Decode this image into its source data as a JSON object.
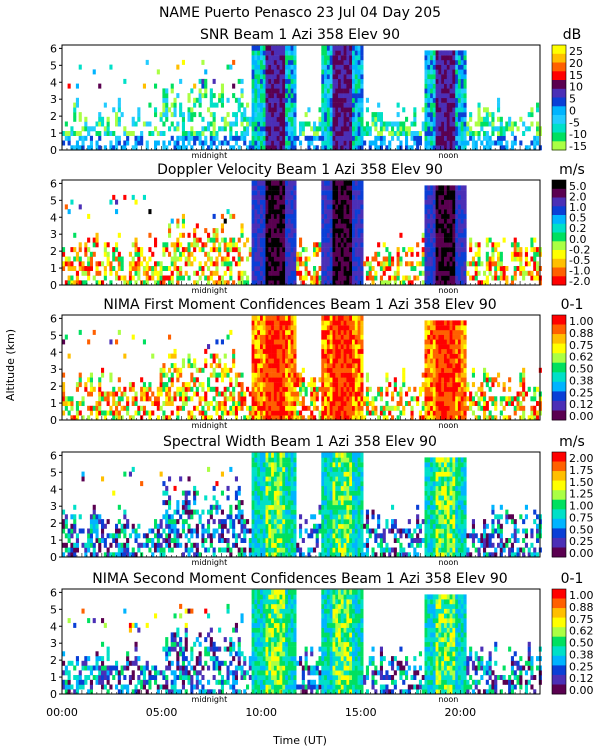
{
  "title": "NAME Puerto Penasco  23 Jul 04 Day 205",
  "ylabel": "Altitude (km)",
  "xlabel": "Time (UT)",
  "x_ticks": [
    "00:00",
    "05:00",
    "10:00",
    "15:00",
    "20:00"
  ],
  "midnight_label": "midnight",
  "noon_label": "noon",
  "chart_data": [
    {
      "type": "heatmap",
      "title": "SNR Beam 1 Azi 358 Elev 90",
      "units": "dB",
      "xlim": [
        0,
        24
      ],
      "ylim": [
        0,
        6.2
      ],
      "y_ticks": [
        0,
        1,
        2,
        3,
        4,
        5,
        6
      ],
      "colorbar": [
        "25",
        "20",
        "15",
        "10",
        "5",
        "0",
        "-5",
        "-10",
        "-15"
      ],
      "colors": [
        "#ffff00",
        "#ffbf00",
        "#ff6000",
        "#ff0000",
        "#5a0050",
        "#4b2fb6",
        "#0a3fd6",
        "#00b4ff",
        "#22ccff",
        "#00e0c8",
        "#00e060",
        "#aaff44"
      ],
      "ridges": [
        {
          "time": 10.6,
          "top": 6.1
        },
        {
          "time": 14.0,
          "top": 6.1
        },
        {
          "time": 19.2,
          "top": 5.7
        }
      ]
    },
    {
      "type": "heatmap",
      "title": "Doppler Velocity Beam 1 Azi 358 Elev 90",
      "units": "m/s",
      "xlim": [
        0,
        24
      ],
      "ylim": [
        0,
        6.2
      ],
      "y_ticks": [
        0,
        1,
        2,
        3,
        4,
        5,
        6
      ],
      "colorbar": [
        "5.0",
        "2.0",
        "1.0",
        "0.5",
        "0.2",
        "0.0",
        "-0.2",
        "-0.5",
        "-1.0",
        "-2.0"
      ],
      "colors": [
        "#000000",
        "#5a0050",
        "#4b2fb6",
        "#0a3fd6",
        "#00b4ff",
        "#00e0c8",
        "#00e060",
        "#aaff44",
        "#ffff00",
        "#ffbf00",
        "#ff6000",
        "#ff0000"
      ],
      "ridges": [
        {
          "time": 10.6,
          "top": 6.1
        },
        {
          "time": 14.0,
          "top": 6.1
        },
        {
          "time": 19.2,
          "top": 5.7
        }
      ]
    },
    {
      "type": "heatmap",
      "title": "NIMA First Moment Confidences Beam 1 Azi 358 Elev 90",
      "units": "0-1",
      "xlim": [
        0,
        24
      ],
      "ylim": [
        0,
        6.2
      ],
      "y_ticks": [
        0,
        1,
        2,
        3,
        4,
        5,
        6
      ],
      "colorbar": [
        "1.00",
        "0.88",
        "0.75",
        "0.62",
        "0.50",
        "0.38",
        "0.25",
        "0.12",
        "0.00"
      ],
      "colors": [
        "#ff0000",
        "#ff6000",
        "#ffbf00",
        "#ffff00",
        "#aaff44",
        "#00e060",
        "#00e0c8",
        "#00b4ff",
        "#0a3fd6",
        "#4b2fb6",
        "#5a0050"
      ],
      "ridges": [
        {
          "time": 10.6,
          "top": 6.1
        },
        {
          "time": 14.0,
          "top": 6.1
        },
        {
          "time": 19.2,
          "top": 5.7
        }
      ]
    },
    {
      "type": "heatmap",
      "title": "Spectral Width Beam 1 Azi 358 Elev 90",
      "units": "m/s",
      "xlim": [
        0,
        24
      ],
      "ylim": [
        0,
        6.2
      ],
      "y_ticks": [
        0,
        1,
        2,
        3,
        4,
        5,
        6
      ],
      "colorbar": [
        "2.00",
        "1.75",
        "1.50",
        "1.25",
        "1.00",
        "0.75",
        "0.50",
        "0.25",
        "0.00"
      ],
      "colors": [
        "#ff0000",
        "#ff6000",
        "#ffbf00",
        "#ffff00",
        "#aaff44",
        "#00e060",
        "#00e0c8",
        "#00b4ff",
        "#0a3fd6",
        "#4b2fb6",
        "#5a0050"
      ],
      "ridges": [
        {
          "time": 10.6,
          "top": 6.1
        },
        {
          "time": 14.0,
          "top": 6.1
        },
        {
          "time": 19.2,
          "top": 5.7
        }
      ]
    },
    {
      "type": "heatmap",
      "title": "NIMA Second Moment Confidences Beam 1 Azi 358 Elev 90",
      "units": "0-1",
      "xlim": [
        0,
        24
      ],
      "ylim": [
        0,
        6.2
      ],
      "y_ticks": [
        0,
        1,
        2,
        3,
        4,
        5,
        6
      ],
      "colorbar": [
        "1.00",
        "0.88",
        "0.75",
        "0.62",
        "0.50",
        "0.38",
        "0.25",
        "0.12",
        "0.00"
      ],
      "colors": [
        "#ff0000",
        "#ff6000",
        "#ffbf00",
        "#ffff00",
        "#aaff44",
        "#00e060",
        "#00e0c8",
        "#00b4ff",
        "#0a3fd6",
        "#4b2fb6",
        "#5a0050"
      ],
      "ridges": [
        {
          "time": 10.6,
          "top": 6.1
        },
        {
          "time": 14.0,
          "top": 6.1
        },
        {
          "time": 19.2,
          "top": 5.7
        }
      ]
    }
  ]
}
